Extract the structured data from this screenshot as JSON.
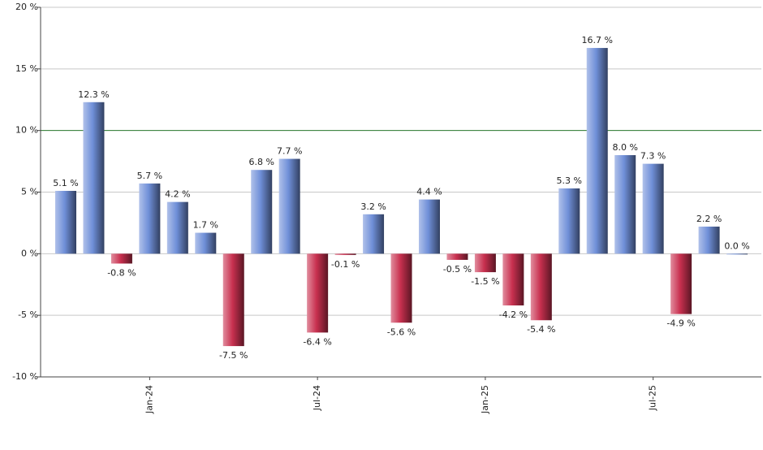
{
  "chart_data": {
    "type": "bar",
    "categories": [
      null,
      null,
      null,
      "Jan-24",
      null,
      null,
      null,
      null,
      null,
      "Jul-24",
      null,
      null,
      null,
      null,
      null,
      "Jan-25",
      null,
      null,
      null,
      null,
      null,
      "Jul-25",
      null,
      null,
      null
    ],
    "values": [
      5.1,
      12.3,
      -0.8,
      5.7,
      4.2,
      1.7,
      -7.5,
      6.8,
      7.7,
      -6.4,
      -0.1,
      3.2,
      -5.6,
      4.4,
      -0.5,
      -1.5,
      -4.2,
      -5.4,
      5.3,
      16.7,
      8.0,
      7.3,
      -4.9,
      2.2,
      0.0
    ],
    "value_labels": [
      "5.1 %",
      "12.3 %",
      "-0.8 %",
      "5.7 %",
      "4.2 %",
      "1.7 %",
      "-7.5 %",
      "6.8 %",
      "7.7 %",
      "-6.4 %",
      "-0.1 %",
      "3.2 %",
      "-5.6 %",
      "4.4 %",
      "-0.5 %",
      "-1.5 %",
      "-4.2 %",
      "-5.4 %",
      "5.3 %",
      "16.7 %",
      "8.0 %",
      "7.3 %",
      "-4.9 %",
      "2.2 %",
      "0.0 %"
    ],
    "positive_color": "#6f8fd8",
    "negative_color": "#c8304f",
    "ylim": [
      -10,
      20
    ],
    "yticks": [
      {
        "value": -10,
        "label": "-10 %"
      },
      {
        "value": -5,
        "label": "-5 %"
      },
      {
        "value": 0,
        "label": "0 %"
      },
      {
        "value": 5,
        "label": "5 %"
      },
      {
        "value": 10,
        "label": "10 %"
      },
      {
        "value": 15,
        "label": "15 %"
      },
      {
        "value": 20,
        "label": "20 %"
      }
    ],
    "grid": true,
    "reference_line": {
      "value": 10,
      "color": "#2e7d32"
    }
  }
}
